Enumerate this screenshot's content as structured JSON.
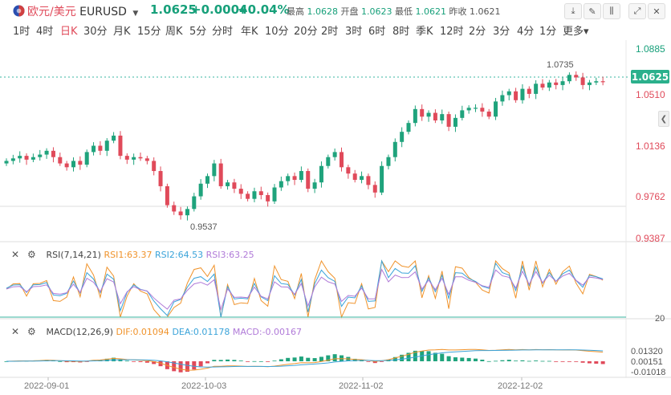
{
  "header": {
    "pair_cn": "欧元/美元",
    "pair_code": "EURUSD",
    "price": "1.0625",
    "change": "+0.0004",
    "change_pct": "+0.04%",
    "high_label": "最高",
    "high": "1.0628",
    "open_label": "开盘",
    "open": "1.0623",
    "low_label": "最低",
    "low": "1.0621",
    "prev_label": "昨收",
    "prev": "1.0621",
    "colors": {
      "up": "#17a07a",
      "down": "#e04a5a",
      "accent": "#e04a5a"
    }
  },
  "periods": [
    "1时",
    "4时",
    "日K",
    "30分",
    "月K",
    "15分",
    "周K",
    "5分",
    "分时",
    "年K",
    "10分",
    "20分",
    "2时",
    "3时",
    "6时",
    "8时",
    "季K",
    "12时",
    "2分",
    "3分",
    "4分",
    "1分",
    "更多"
  ],
  "active_period": "日K",
  "price_axis": [
    "1.0885",
    "1.0510",
    "1.0136",
    "0.9762",
    "0.9387"
  ],
  "current_price_tag": "1.0625",
  "annotations": {
    "high": "1.0735",
    "low": "0.9537"
  },
  "rsi": {
    "label": "RSI(7,14,21)",
    "rsi1": "RSI1:63.37",
    "rsi2": "RSI2:64.53",
    "rsi3": "RSI3:63.25",
    "level": "20"
  },
  "macd": {
    "label": "MACD(12,26,9)",
    "dif": "DIF:0.01094",
    "dea": "DEA:0.01178",
    "macd": "MACD:-0.00167",
    "axis": [
      "0.01320",
      "0.00151",
      "-0.01018"
    ]
  },
  "dates": [
    "2022-09-01",
    "2022-10-03",
    "2022-11-02",
    "2022-12-02"
  ],
  "icons": [
    "eu-flag-icon",
    "caret-down-icon",
    "draw-line-icon",
    "pencil-icon",
    "candle-settings-icon",
    "expand-icon",
    "close-icon",
    "chevron-left-icon",
    "gear-icon"
  ]
}
